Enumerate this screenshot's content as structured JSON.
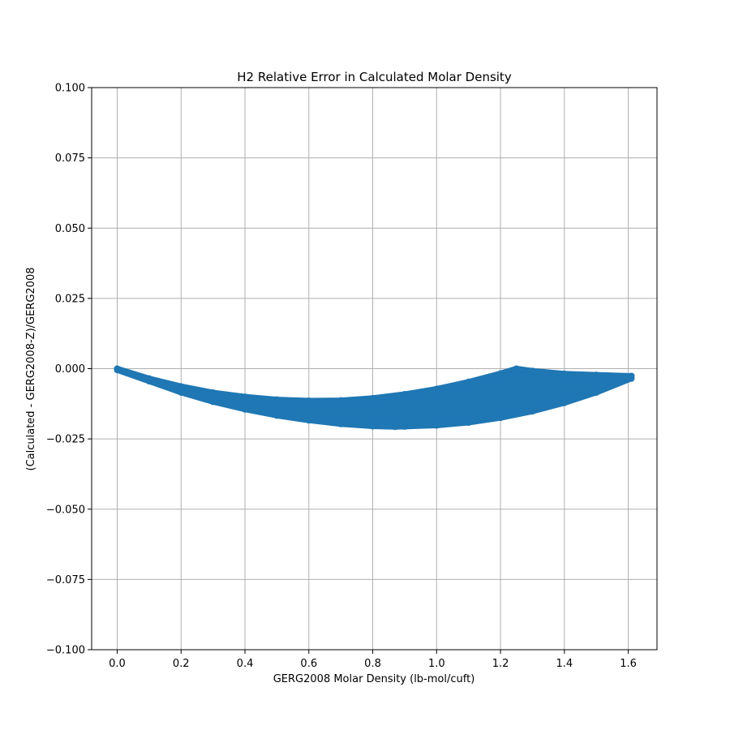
{
  "chart_data": {
    "type": "scatter",
    "title": "H2 Relative Error in Calculated Molar Density",
    "xlabel": "GERG2008 Molar Density (lb-mol/cuft)",
    "ylabel": "(Calculated - GERG2008-Z)/GERG2008",
    "xlim": [
      -0.08,
      1.69
    ],
    "ylim": [
      -0.1,
      0.1
    ],
    "x_ticks": [
      0.0,
      0.2,
      0.4,
      0.6,
      0.8,
      1.0,
      1.2,
      1.4,
      1.6
    ],
    "x_tick_labels": [
      "0.0",
      "0.2",
      "0.4",
      "0.6",
      "0.8",
      "1.0",
      "1.2",
      "1.4",
      "1.6"
    ],
    "y_ticks": [
      0.1,
      0.075,
      0.05,
      0.025,
      0.0,
      -0.025,
      -0.05,
      -0.075,
      -0.1
    ],
    "y_tick_labels": [
      "0.100",
      "0.075",
      "0.050",
      "0.025",
      "0.000",
      "−0.025",
      "−0.050",
      "−0.075",
      "−0.100"
    ],
    "grid": true,
    "color": "#1f77b4",
    "series": [
      {
        "upper_edge": {
          "x": [
            0.0,
            0.1,
            0.2,
            0.3,
            0.4,
            0.5,
            0.6,
            0.7,
            0.8,
            0.9,
            1.0,
            1.1,
            1.2,
            1.25,
            1.3,
            1.4,
            1.5,
            1.61
          ],
          "y": [
            0.0,
            -0.0035,
            -0.0063,
            -0.0085,
            -0.01,
            -0.011,
            -0.0114,
            -0.0113,
            -0.0105,
            -0.0091,
            -0.0072,
            -0.0047,
            -0.0017,
            0.0,
            -0.0008,
            -0.0018,
            -0.0022,
            -0.0026
          ]
        },
        "lower_edge": {
          "x": [
            0.0,
            0.1,
            0.2,
            0.3,
            0.4,
            0.5,
            0.6,
            0.7,
            0.8,
            0.87,
            0.9,
            1.0,
            1.1,
            1.2,
            1.3,
            1.4,
            1.5,
            1.61
          ],
          "y": [
            -0.0005,
            -0.0045,
            -0.0085,
            -0.0118,
            -0.0145,
            -0.0167,
            -0.0184,
            -0.0197,
            -0.0205,
            -0.0207,
            -0.0206,
            -0.0202,
            -0.0192,
            -0.0175,
            -0.0152,
            -0.0122,
            -0.0085,
            -0.0035
          ]
        }
      }
    ]
  }
}
